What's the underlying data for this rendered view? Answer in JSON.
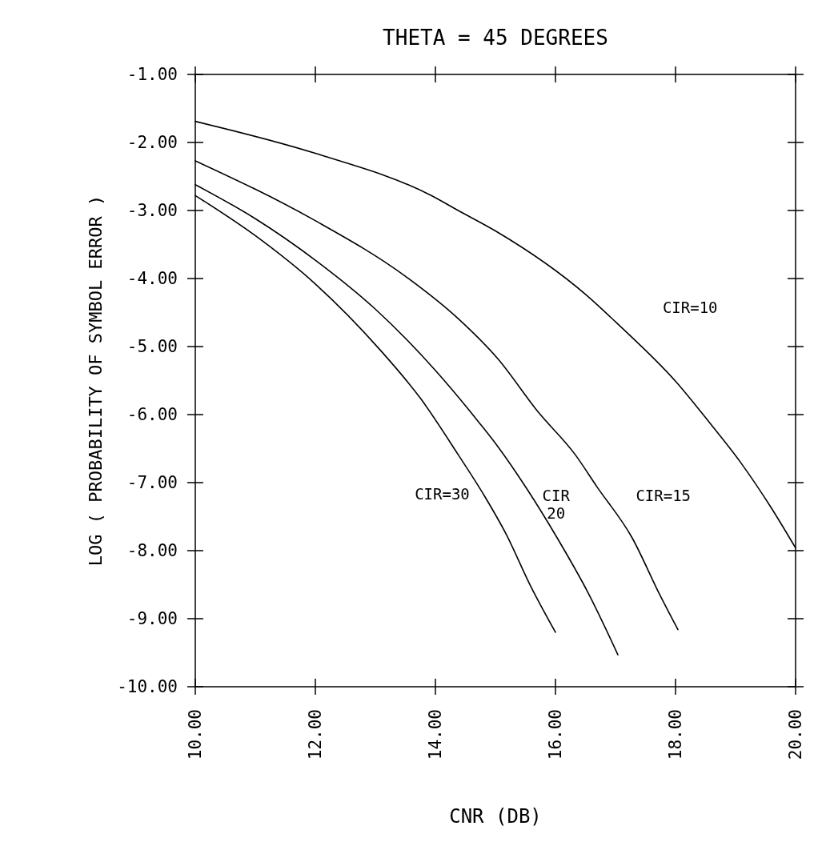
{
  "chart_data": {
    "type": "line",
    "title": "THETA = 45 DEGREES",
    "xlabel": "CNR (DB)",
    "ylabel": "LOG ( PROBABILITY OF SYMBOL ERROR )",
    "xlim": [
      10,
      20
    ],
    "ylim": [
      -10,
      -1
    ],
    "xticks": [
      {
        "value": 10,
        "label": "10.00"
      },
      {
        "value": 12,
        "label": "12.00"
      },
      {
        "value": 14,
        "label": "14.00"
      },
      {
        "value": 16,
        "label": "16.00"
      },
      {
        "value": 18,
        "label": "18.00"
      },
      {
        "value": 20,
        "label": "20.00"
      }
    ],
    "yticks": [
      {
        "value": -1,
        "label": "-1.00"
      },
      {
        "value": -2,
        "label": "-2.00"
      },
      {
        "value": -3,
        "label": "-3.00"
      },
      {
        "value": -4,
        "label": "-4.00"
      },
      {
        "value": -5,
        "label": "-5.00"
      },
      {
        "value": -6,
        "label": "-6.00"
      },
      {
        "value": -7,
        "label": "-7.00"
      },
      {
        "value": -8,
        "label": "-8.00"
      },
      {
        "value": -9,
        "label": "-9.00"
      },
      {
        "value": -10,
        "label": "-10.00"
      }
    ],
    "grid": false,
    "legend": false,
    "marker": "none",
    "line_style": "solid",
    "series": [
      {
        "name": "CIR=10",
        "color": "#000000",
        "x": [
          10,
          12,
          13.93,
          14.38,
          15.0,
          16.51,
          17.04,
          18.02,
          18.55,
          19.09,
          19.58,
          20
        ],
        "values": [
          -1.69,
          -2.16,
          -2.78,
          -3.0,
          -3.3,
          -4.24,
          -4.67,
          -5.53,
          -6.1,
          -6.71,
          -7.35,
          -7.96
        ]
      },
      {
        "name": "CIR=15",
        "color": "#000000",
        "x": [
          10,
          11.98,
          13.49,
          14.38,
          15.04,
          15.71,
          16.33,
          16.69,
          17.27,
          17.75,
          18.04
        ],
        "values": [
          -2.27,
          -3.14,
          -3.96,
          -4.59,
          -5.18,
          -5.96,
          -6.59,
          -7.06,
          -7.8,
          -8.67,
          -9.16
        ]
      },
      {
        "name": "CIR\n20",
        "color": "#000000",
        "x": [
          10,
          11,
          12,
          13,
          14.02,
          14.73,
          15.04,
          15.53,
          16.02,
          16.55,
          17.04
        ],
        "values": [
          -2.62,
          -3.12,
          -3.73,
          -4.45,
          -5.37,
          -6.12,
          -6.47,
          -7.1,
          -7.8,
          -8.63,
          -9.53
        ]
      },
      {
        "name": "CIR=30",
        "color": "#000000",
        "x": [
          10,
          11,
          12,
          13.09,
          13.75,
          14.38,
          14.82,
          15.18,
          15.58,
          16
        ],
        "values": [
          -2.78,
          -3.37,
          -4.08,
          -5.06,
          -5.76,
          -6.59,
          -7.2,
          -7.76,
          -8.51,
          -9.2
        ]
      }
    ]
  }
}
